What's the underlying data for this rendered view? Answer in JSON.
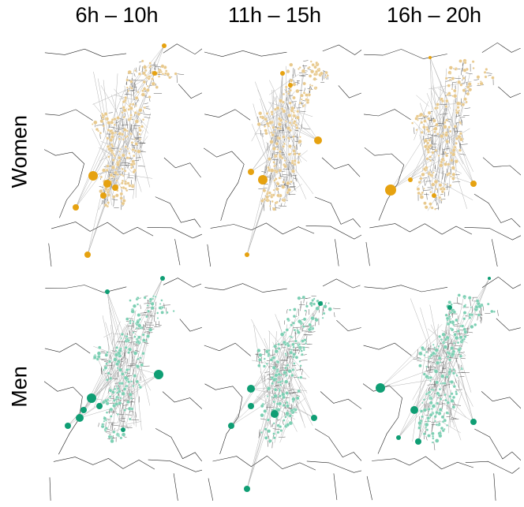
{
  "columns": [
    "6h – 10h",
    "11h – 15h",
    "16h – 20h"
  ],
  "rows": [
    {
      "label": "Women",
      "color": "#e6a210",
      "light_color": "#e8c98d"
    },
    {
      "label": "Men",
      "color": "#0f9e74",
      "light_color": "#7ccfb3"
    }
  ],
  "colors": {
    "boundary": "#222222",
    "flow": "#777777"
  }
}
